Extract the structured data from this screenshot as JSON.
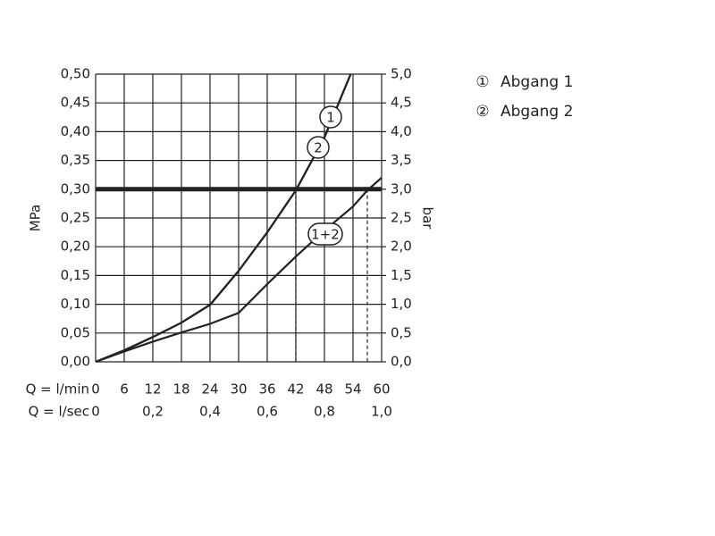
{
  "chart_data": {
    "type": "line",
    "y_label": "MPa",
    "y2_label": "bar",
    "x_row_labels": [
      "Q = l/min",
      "Q = l/sec"
    ],
    "xlim": [
      0,
      60
    ],
    "xticks": [
      0,
      6,
      12,
      18,
      24,
      30,
      36,
      42,
      48,
      54,
      60
    ],
    "x2lim": [
      0,
      1
    ],
    "x2ticks": [
      0,
      {
        "value": 0.2,
        "label": "0,2"
      },
      {
        "value": 0.4,
        "label": "0,4"
      },
      {
        "value": 0.6,
        "label": "0,6"
      },
      {
        "value": 0.8,
        "label": "0,8"
      },
      {
        "value": 1,
        "label": "1,0"
      }
    ],
    "ylim": [
      0,
      0.5
    ],
    "yticks": [
      {
        "value": 0,
        "label": "0,00"
      },
      {
        "value": 0.05,
        "label": "0,05"
      },
      {
        "value": 0.1,
        "label": "0,10"
      },
      {
        "value": 0.15,
        "label": "0,15"
      },
      {
        "value": 0.2,
        "label": "0,20"
      },
      {
        "value": 0.25,
        "label": "0,25"
      },
      {
        "value": 0.3,
        "label": "0,30"
      },
      {
        "value": 0.35,
        "label": "0,35"
      },
      {
        "value": 0.4,
        "label": "0,40"
      },
      {
        "value": 0.45,
        "label": "0,45"
      },
      {
        "value": 0.5,
        "label": "0,50"
      }
    ],
    "y2lim": [
      0,
      5
    ],
    "y2ticks": [
      {
        "value": 0,
        "label": "0,0"
      },
      {
        "value": 0.5,
        "label": "0,5"
      },
      {
        "value": 1,
        "label": "1,0"
      },
      {
        "value": 1.5,
        "label": "1,5"
      },
      {
        "value": 2,
        "label": "2,0"
      },
      {
        "value": 2.5,
        "label": "2,5"
      },
      {
        "value": 3,
        "label": "3,0"
      },
      {
        "value": 3.5,
        "label": "3,5"
      },
      {
        "value": 4,
        "label": "4,0"
      },
      {
        "value": 4.5,
        "label": "4,5"
      },
      {
        "value": 5,
        "label": "5,0"
      }
    ],
    "grid": true,
    "reference_y": 0.3,
    "dashed_x": [
      42,
      57
    ],
    "series": [
      {
        "name": "1",
        "color": "#222222",
        "x": [
          0,
          6,
          12,
          18,
          24,
          30,
          36,
          42,
          48,
          53.5
        ],
        "values": [
          0,
          0.02,
          0.043,
          0.068,
          0.099,
          0.158,
          0.225,
          0.298,
          0.39,
          0.5
        ]
      },
      {
        "name": "2",
        "color": "#222222",
        "x": [
          0,
          6,
          12,
          18,
          24,
          30,
          36,
          42,
          48,
          53.5
        ],
        "values": [
          0,
          0.02,
          0.043,
          0.068,
          0.099,
          0.158,
          0.225,
          0.298,
          0.39,
          0.5
        ]
      },
      {
        "name": "1+2",
        "color": "#222222",
        "x": [
          0,
          6,
          12,
          18,
          24,
          30,
          36,
          42,
          48,
          54,
          57,
          60
        ],
        "values": [
          0,
          0.018,
          0.035,
          0.051,
          0.066,
          0.085,
          0.135,
          0.183,
          0.228,
          0.27,
          0.298,
          0.32
        ]
      }
    ],
    "legend": [
      {
        "symbol": "①",
        "label": "Abgang 1"
      },
      {
        "symbol": "②",
        "label": "Abgang 2"
      }
    ]
  }
}
